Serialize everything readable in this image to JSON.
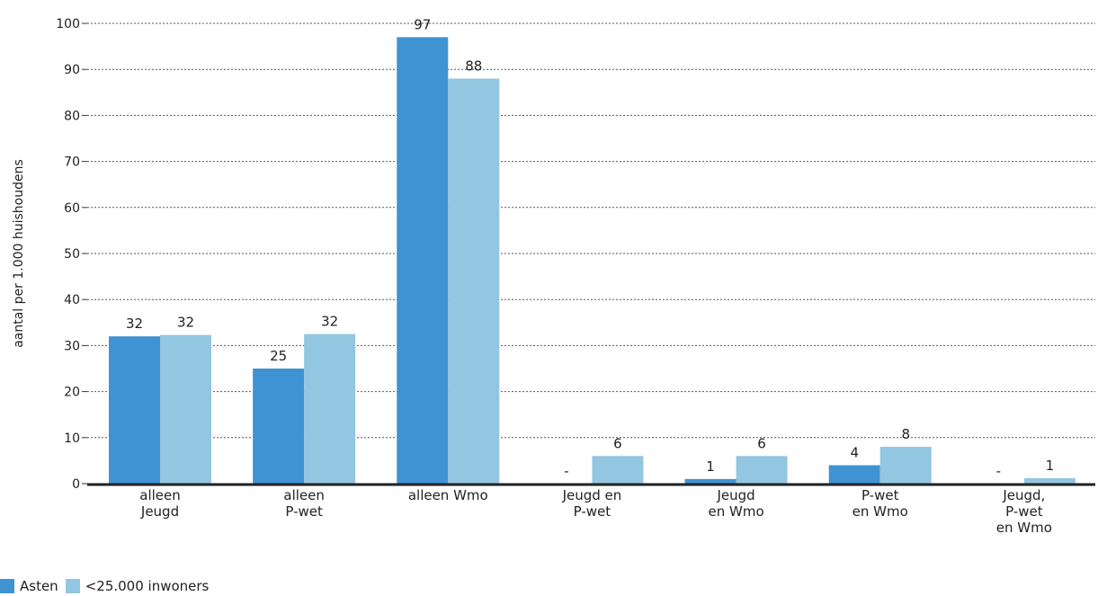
{
  "chart_data": {
    "type": "bar",
    "ylabel": "aantal per 1.000 huishoudens",
    "ylim": [
      0,
      100
    ],
    "yticks": [
      "0",
      "10",
      "20",
      "30",
      "40",
      "50",
      "60",
      "70",
      "80",
      "90",
      "100"
    ],
    "grid": true,
    "legend_position": "bottom-left",
    "categories": [
      [
        "alleen",
        "Jeugd"
      ],
      [
        "alleen",
        "P-wet"
      ],
      [
        "alleen Wmo"
      ],
      [
        "Jeugd en",
        "P-wet"
      ],
      [
        "Jeugd",
        "en Wmo"
      ],
      [
        "P-wet",
        "en Wmo"
      ],
      [
        "Jeugd,",
        "P-wet",
        "en Wmo"
      ]
    ],
    "series": [
      {
        "name": "Asten",
        "color": "#3f93d2",
        "values": [
          32,
          25,
          97,
          0,
          1,
          4,
          0
        ],
        "labels": [
          "32",
          "25",
          "97",
          "-",
          "1",
          "4",
          "-"
        ]
      },
      {
        "name": "<25.000 inwoners",
        "color": "#93c6e0",
        "values": [
          32.3,
          32.5,
          88,
          6,
          6,
          8,
          1.2
        ],
        "labels": [
          "32",
          "32",
          "88",
          "6",
          "6",
          "8",
          "1"
        ]
      }
    ]
  }
}
